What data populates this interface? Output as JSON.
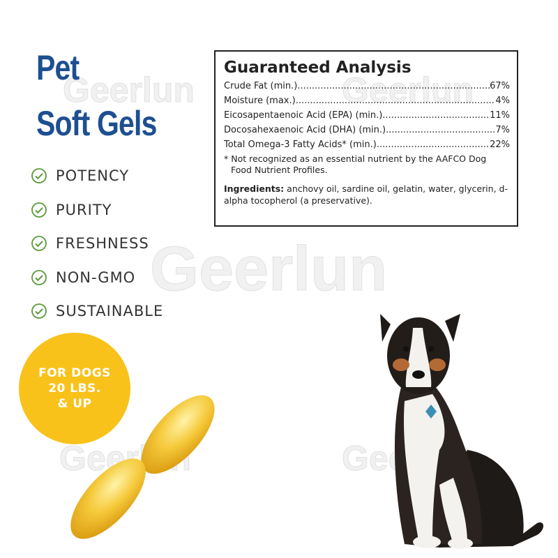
{
  "heading": {
    "line1": "Pet",
    "line2": "Soft Gels"
  },
  "features": [
    "POTENCY",
    "PURITY",
    "FRESHNESS",
    "NON-GMO",
    "SUSTAINABLE"
  ],
  "badge": {
    "line1": "FOR DOGS",
    "line2": "20 LBS.",
    "line3": "& UP"
  },
  "analysis": {
    "title": "Guaranteed Analysis",
    "rows": [
      {
        "label": "Crude Fat (min.)",
        "value": "67%"
      },
      {
        "label": "Moisture (max.)",
        "value": "4%"
      },
      {
        "label": "Eicosapentaenoic Acid (EPA) (min.)",
        "value": "11%"
      },
      {
        "label": "Docosahexaenoic Acid (DHA) (min.)",
        "value": "7%"
      },
      {
        "label": "Total Omega-3 Fatty Acids* (min.)",
        "value": "22%"
      }
    ],
    "footnote": "* Not recognized as an essential nutrient by the AAFCO Dog Food Nutrient Profiles.",
    "ingredients_label": "Ingredients:",
    "ingredients_text": "anchovy oil, sardine oil, gelatin, water, glycerin, d-alpha tocopherol (a preservative)."
  },
  "watermark": "Geerlun",
  "colors": {
    "heading": "#1d4f91",
    "check": "#5a9a3a",
    "badge": "#f8c21b",
    "softgel": "#f3c23a"
  },
  "icons": {
    "feature": "check-circle-icon"
  }
}
